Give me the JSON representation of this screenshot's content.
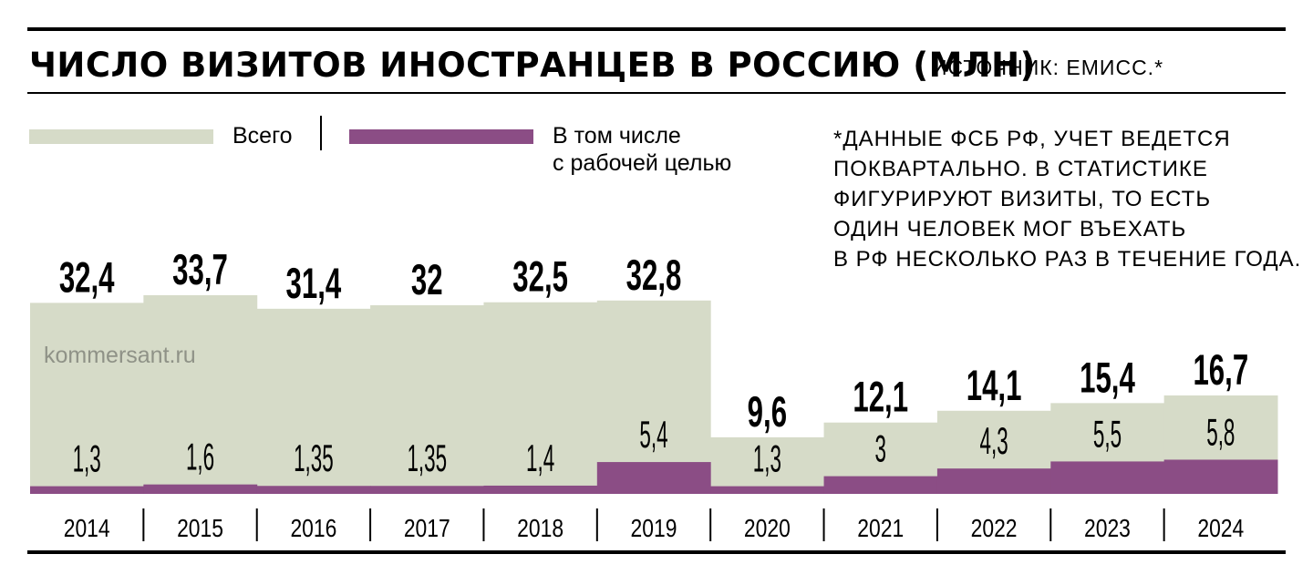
{
  "header": {
    "title": "ЧИСЛО ВИЗИТОВ ИНОСТРАНЦЕВ В РОССИЮ (МЛН)",
    "source": "ИСТОЧНИК: ЕМИСС.*"
  },
  "legend": {
    "total_label": "Всего",
    "work_label_line1": "В том числе",
    "work_label_line2": "с рабочей целью"
  },
  "footnote": {
    "lines": [
      "*ДАННЫЕ ФСБ РФ, УЧЕТ ВЕДЕТСЯ",
      "ПОКВАРТАЛЬНО. В СТАТИСТИКЕ",
      "ФИГУРИРУЮТ ВИЗИТЫ, ТО ЕСТЬ",
      "ОДИН ЧЕЛОВЕК МОГ ВЪЕХАТЬ",
      "В РФ НЕСКОЛЬКО РАЗ В ТЕЧЕНИЕ ГОДА."
    ]
  },
  "watermark": "kommersant.ru",
  "colors": {
    "total": "#d6dbc8",
    "work": "#8b4d85",
    "rule": "#000000"
  },
  "chart_data": {
    "type": "bar",
    "title": "ЧИСЛО ВИЗИТОВ ИНОСТРАНЦЕВ В РОССИЮ (МЛН)",
    "categories": [
      "2014",
      "2015",
      "2016",
      "2017",
      "2018",
      "2019",
      "2020",
      "2021",
      "2022",
      "2023",
      "2024"
    ],
    "series": [
      {
        "name": "Всего",
        "values": [
          32.4,
          33.7,
          31.4,
          32,
          32.5,
          32.8,
          9.6,
          12.1,
          14.1,
          15.4,
          16.7
        ],
        "labels": [
          "32,4",
          "33,7",
          "31,4",
          "32",
          "32,5",
          "32,8",
          "9,6",
          "12,1",
          "14,1",
          "15,4",
          "16,7"
        ]
      },
      {
        "name": "В том числе с рабочей целью",
        "values": [
          1.3,
          1.6,
          1.35,
          1.35,
          1.4,
          5.4,
          1.3,
          3,
          4.3,
          5.5,
          5.8
        ],
        "labels": [
          "1,3",
          "1,6",
          "1,35",
          "1,35",
          "1,4",
          "5,4",
          "1,3",
          "3",
          "4,3",
          "5,5",
          "5,8"
        ]
      }
    ],
    "xlabel": "",
    "ylabel": "",
    "ylim": [
      0,
      34
    ],
    "grid": false,
    "legend": "top-left"
  }
}
